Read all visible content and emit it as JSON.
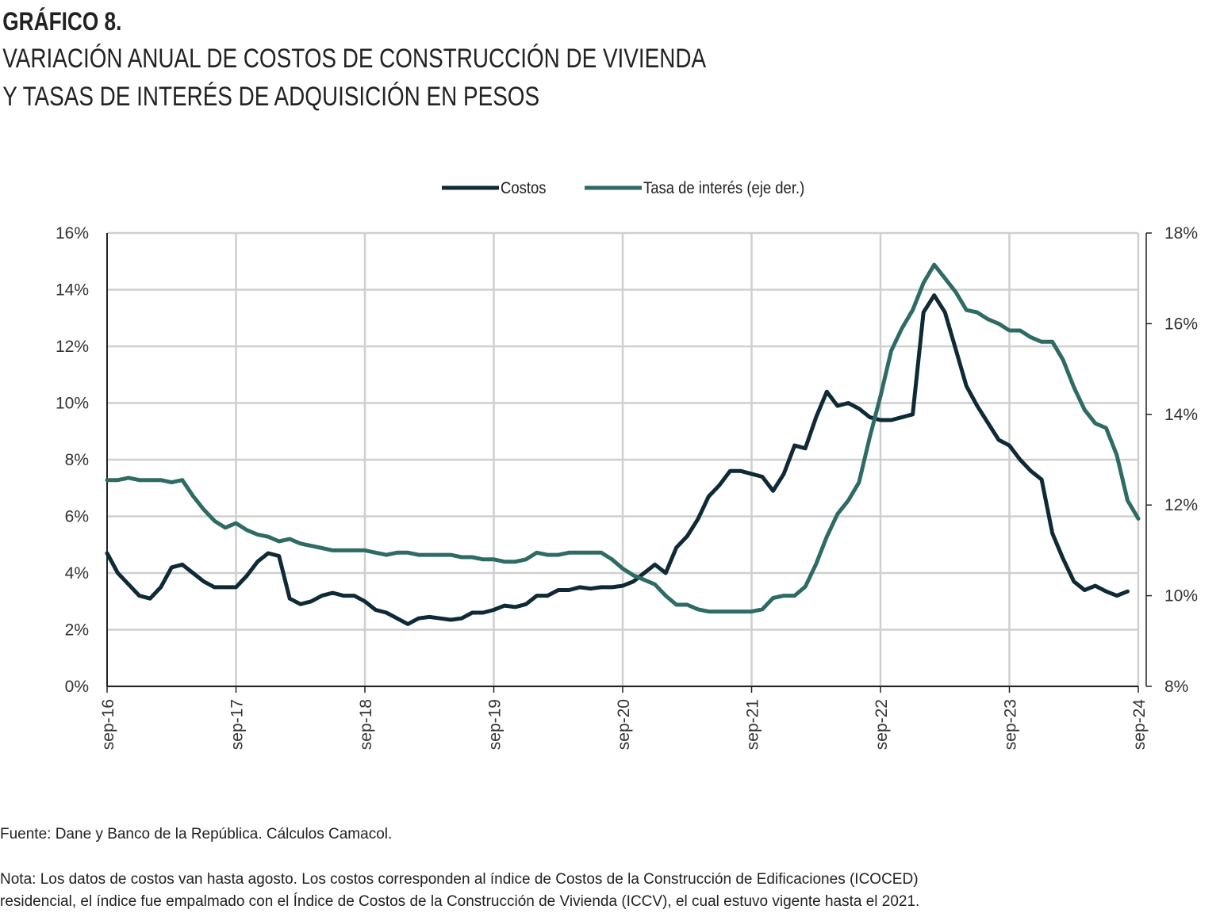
{
  "chart_data": {
    "type": "line",
    "title": "GRÁFICO 8.",
    "subtitle": [
      "VARIACIÓN ANUAL DE COSTOS DE CONSTRUCCIÓN DE VIVIENDA",
      "Y TASAS DE INTERÉS DE ADQUISICIÓN EN PESOS"
    ],
    "source": "Fuente: Dane y Banco de la República. Cálculos Camacol.",
    "note": [
      "Nota: Los datos de costos van hasta agosto. Los costos corresponden al índice de Costos de la Construcción de Edificaciones (ICOCED)",
      "residencial, el índice fue empalmado con el Índice de Costos de la Construcción de Vivienda (ICCV), el cual estuvo vigente hasta el 2021."
    ],
    "categories": [
      "sep-16",
      null,
      null,
      null,
      null,
      null,
      null,
      null,
      null,
      null,
      null,
      null,
      "sep-17",
      null,
      null,
      null,
      null,
      null,
      null,
      null,
      null,
      null,
      null,
      null,
      "sep-18",
      null,
      null,
      null,
      null,
      null,
      null,
      null,
      null,
      null,
      null,
      null,
      "sep-19",
      null,
      null,
      null,
      null,
      null,
      null,
      null,
      null,
      null,
      null,
      null,
      "sep-20",
      null,
      null,
      null,
      null,
      null,
      null,
      null,
      null,
      null,
      null,
      null,
      "sep-21",
      null,
      null,
      null,
      null,
      null,
      null,
      null,
      null,
      null,
      null,
      null,
      "sep-22",
      null,
      null,
      null,
      null,
      null,
      null,
      null,
      null,
      null,
      null,
      null,
      "sep-23",
      null,
      null,
      null,
      null,
      null,
      null,
      null,
      null,
      null,
      null,
      null,
      "sep-24"
    ],
    "series": [
      {
        "name": "Costos",
        "color": "#0f2a36",
        "values": [
          4.7,
          4.0,
          3.6,
          3.2,
          3.1,
          3.5,
          4.2,
          4.3,
          4.0,
          3.7,
          3.5,
          3.5,
          3.5,
          3.9,
          4.4,
          4.7,
          4.6,
          3.1,
          2.9,
          3.0,
          3.2,
          3.3,
          3.2,
          3.2,
          3.0,
          2.7,
          2.6,
          2.4,
          2.2,
          2.4,
          2.45,
          2.4,
          2.35,
          2.4,
          2.6,
          2.6,
          2.7,
          2.85,
          2.8,
          2.9,
          3.2,
          3.2,
          3.4,
          3.4,
          3.5,
          3.45,
          3.5,
          3.5,
          3.55,
          3.7,
          4.0,
          4.3,
          4.0,
          4.9,
          5.3,
          5.9,
          6.7,
          7.1,
          7.6,
          7.6,
          7.5,
          7.4,
          6.9,
          7.5,
          8.5,
          8.4,
          9.5,
          10.4,
          9.9,
          10.0,
          9.8,
          9.5,
          9.4,
          9.4,
          9.5,
          9.6,
          13.2,
          13.8,
          13.2,
          11.9,
          10.6,
          9.9,
          9.3,
          8.7,
          8.5,
          8.0,
          7.6,
          7.3,
          5.4,
          4.5,
          3.7,
          3.4,
          3.55,
          3.35,
          3.2,
          3.35,
          null
        ]
      },
      {
        "name": "Tasa de interés (eje der.)",
        "color": "#2f6b65",
        "axis": "y2",
        "values": [
          12.55,
          12.55,
          12.6,
          12.55,
          12.55,
          12.55,
          12.5,
          12.55,
          12.2,
          11.9,
          11.65,
          11.5,
          11.6,
          11.45,
          11.35,
          11.3,
          11.2,
          11.25,
          11.15,
          11.1,
          11.05,
          11.0,
          11.0,
          11.0,
          11.0,
          10.95,
          10.9,
          10.95,
          10.95,
          10.9,
          10.9,
          10.9,
          10.9,
          10.85,
          10.85,
          10.8,
          10.8,
          10.75,
          10.75,
          10.8,
          10.95,
          10.9,
          10.9,
          10.95,
          10.95,
          10.95,
          10.95,
          10.8,
          10.6,
          10.45,
          10.35,
          10.25,
          10.0,
          9.8,
          9.8,
          9.7,
          9.65,
          9.65,
          9.65,
          9.65,
          9.65,
          9.7,
          9.95,
          10.0,
          10.0,
          10.2,
          10.7,
          11.3,
          11.8,
          12.1,
          12.5,
          13.5,
          14.4,
          15.4,
          15.9,
          16.3,
          16.9,
          17.3,
          17.0,
          16.7,
          16.3,
          16.25,
          16.1,
          16.0,
          15.85,
          15.85,
          15.7,
          15.6,
          15.6,
          15.2,
          14.6,
          14.1,
          13.8,
          13.7,
          13.1,
          12.1,
          11.7
        ]
      }
    ],
    "ylim": [
      0,
      16
    ],
    "yticks": [
      {
        "value": 0,
        "label": "0%"
      },
      {
        "value": 2,
        "label": "2%"
      },
      {
        "value": 4,
        "label": "4%"
      },
      {
        "value": 6,
        "label": "6%"
      },
      {
        "value": 8,
        "label": "8%"
      },
      {
        "value": 10,
        "label": "10%"
      },
      {
        "value": 12,
        "label": "12%"
      },
      {
        "value": 14,
        "label": "14%"
      },
      {
        "value": 16,
        "label": "16%"
      }
    ],
    "y2lim": [
      8,
      18
    ],
    "y2ticks": [
      {
        "value": 8,
        "label": "8%"
      },
      {
        "value": 10,
        "label": "10%"
      },
      {
        "value": 12,
        "label": "12%"
      },
      {
        "value": 14,
        "label": "14%"
      },
      {
        "value": 16,
        "label": "16%"
      },
      {
        "value": 18,
        "label": "18%"
      }
    ],
    "grid": true,
    "legend": "top"
  }
}
